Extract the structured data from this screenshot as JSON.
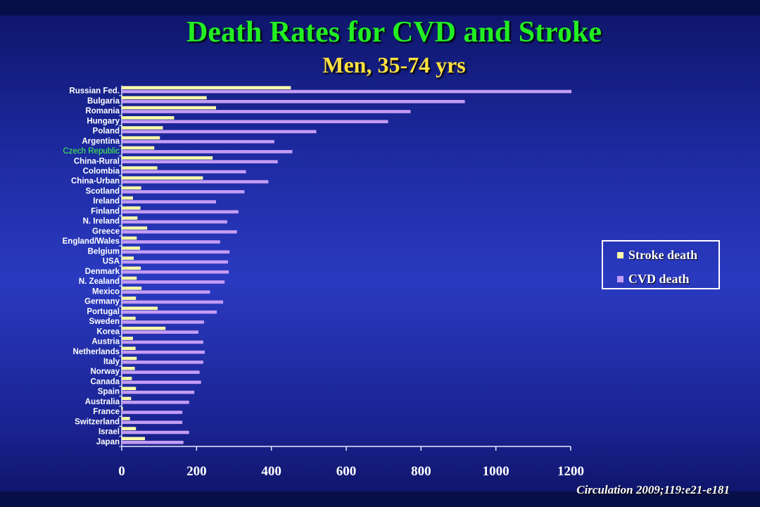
{
  "slide": {
    "title": "Death Rates for CVD and Stroke",
    "subtitle": "Men, 35-74 yrs",
    "citation": "Circulation 2009;119:e21-e181"
  },
  "colors": {
    "stroke": "#ffffaa",
    "cvd": "#c49cf5",
    "highlight_label": "#44ff44",
    "label": "#ffffff",
    "title": "#22ee22",
    "subtitle": "#ffe040"
  },
  "chart_data": {
    "type": "bar",
    "orientation": "horizontal",
    "categories": [
      "Russian Fed.",
      "Bulgaria",
      "Romania",
      "Hungary",
      "Poland",
      "Argentina",
      "Czech Republic",
      "China-Rural",
      "Colombia",
      "China-Urban",
      "Scotland",
      "Ireland",
      "Finland",
      "N. Ireland",
      "Greece",
      "England/Wales",
      "Belgium",
      "USA",
      "Denmark",
      "N. Zealand",
      "Mexico",
      "Germany",
      "Portugal",
      "Sweden",
      "Korea",
      "Austria",
      "Netherlands",
      "Italy",
      "Norway",
      "Canada",
      "Spain",
      "Australia",
      "France",
      "Switzerland",
      "Israel",
      "Japan"
    ],
    "highlight_category": "Czech Republic",
    "series": [
      {
        "name": "Stroke death",
        "values": [
          452,
          227,
          252,
          140,
          110,
          102,
          87,
          243,
          95,
          217,
          52,
          30,
          50,
          42,
          68,
          40,
          49,
          32,
          51,
          40,
          53,
          38,
          96,
          37,
          117,
          30,
          37,
          40,
          35,
          27,
          38,
          25,
          3,
          22,
          38,
          62
        ]
      },
      {
        "name": "CVD death",
        "values": [
          1202,
          917,
          772,
          712,
          520,
          408,
          456,
          417,
          332,
          392,
          328,
          252,
          312,
          282,
          308,
          263,
          288,
          284,
          286,
          275,
          236,
          271,
          254,
          220,
          205,
          218,
          222,
          218,
          208,
          212,
          194,
          180,
          162,
          162,
          180,
          165
        ]
      }
    ],
    "xlim": [
      0,
      1200
    ],
    "xticks": [
      0,
      200,
      400,
      600,
      800,
      1000,
      1200
    ],
    "legend": [
      "Stroke death",
      "CVD death"
    ],
    "legend_position": "right"
  }
}
